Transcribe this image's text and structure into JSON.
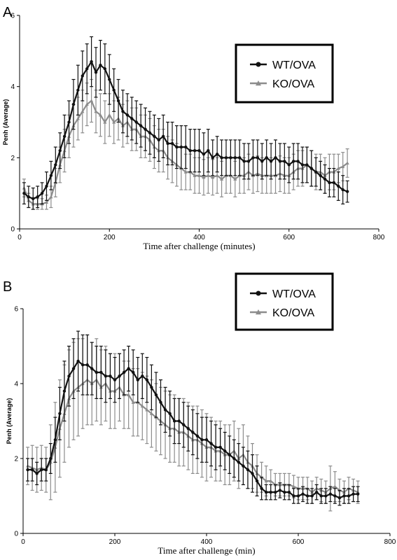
{
  "chart_data": [
    {
      "panel": "A",
      "type": "line",
      "xlabel": "Time after challenge (minutes)",
      "ylabel": "Penh (Average)",
      "xlim": [
        0,
        800
      ],
      "ylim": [
        0,
        6
      ],
      "xticks": [
        0,
        200,
        400,
        600,
        800
      ],
      "yticks": [
        0,
        2,
        4,
        6
      ],
      "legend_position": "top-right",
      "series": [
        {
          "name": "WT/OVA",
          "color": "#111111",
          "marker": "circle",
          "x": [
            10,
            20,
            30,
            40,
            50,
            60,
            70,
            80,
            90,
            100,
            110,
            120,
            130,
            140,
            150,
            160,
            170,
            180,
            190,
            200,
            210,
            220,
            230,
            240,
            250,
            260,
            270,
            280,
            290,
            300,
            310,
            320,
            330,
            340,
            350,
            360,
            370,
            380,
            390,
            400,
            410,
            420,
            430,
            440,
            450,
            460,
            470,
            480,
            490,
            500,
            510,
            520,
            530,
            540,
            550,
            560,
            570,
            580,
            590,
            600,
            610,
            620,
            630,
            640,
            650,
            660,
            670,
            680,
            690,
            700,
            710,
            720,
            730
          ],
          "y": [
            1.0,
            0.9,
            0.85,
            0.9,
            1.0,
            1.2,
            1.5,
            1.8,
            2.2,
            2.6,
            3.0,
            3.5,
            3.9,
            4.3,
            4.5,
            4.7,
            4.4,
            4.6,
            4.5,
            4.2,
            3.9,
            3.6,
            3.3,
            3.2,
            3.1,
            3.0,
            2.9,
            2.8,
            2.7,
            2.6,
            2.5,
            2.6,
            2.4,
            2.4,
            2.3,
            2.3,
            2.3,
            2.2,
            2.2,
            2.2,
            2.1,
            2.2,
            2.0,
            2.1,
            2.0,
            2.0,
            2.0,
            2.0,
            2.0,
            1.9,
            1.9,
            2.0,
            2.0,
            1.9,
            2.0,
            1.9,
            2.0,
            1.9,
            1.9,
            1.8,
            1.9,
            1.9,
            1.8,
            1.8,
            1.7,
            1.6,
            1.5,
            1.4,
            1.3,
            1.3,
            1.2,
            1.1,
            1.05
          ],
          "error": [
            0.3,
            0.3,
            0.3,
            0.3,
            0.3,
            0.4,
            0.4,
            0.5,
            0.5,
            0.6,
            0.6,
            0.7,
            0.7,
            0.7,
            0.7,
            0.7,
            0.7,
            0.7,
            0.7,
            0.7,
            0.6,
            0.6,
            0.6,
            0.6,
            0.6,
            0.6,
            0.6,
            0.6,
            0.6,
            0.6,
            0.6,
            0.6,
            0.6,
            0.6,
            0.6,
            0.6,
            0.6,
            0.6,
            0.6,
            0.6,
            0.6,
            0.6,
            0.5,
            0.5,
            0.5,
            0.5,
            0.5,
            0.5,
            0.5,
            0.5,
            0.5,
            0.5,
            0.5,
            0.5,
            0.5,
            0.5,
            0.5,
            0.5,
            0.5,
            0.5,
            0.5,
            0.5,
            0.5,
            0.5,
            0.5,
            0.4,
            0.4,
            0.4,
            0.4,
            0.4,
            0.4,
            0.4,
            0.3
          ]
        },
        {
          "name": "KO/OVA",
          "color": "#8c8c8c",
          "marker": "triangle",
          "x": [
            10,
            20,
            30,
            40,
            50,
            60,
            70,
            80,
            90,
            100,
            110,
            120,
            130,
            140,
            150,
            160,
            170,
            180,
            190,
            200,
            210,
            220,
            230,
            240,
            250,
            260,
            270,
            280,
            290,
            300,
            310,
            320,
            330,
            340,
            350,
            360,
            370,
            380,
            390,
            400,
            410,
            420,
            430,
            440,
            450,
            460,
            470,
            480,
            490,
            500,
            510,
            520,
            530,
            540,
            550,
            560,
            570,
            580,
            590,
            600,
            610,
            620,
            630,
            640,
            650,
            660,
            670,
            680,
            690,
            700,
            710,
            720,
            730
          ],
          "y": [
            1.15,
            0.8,
            0.7,
            0.7,
            0.7,
            0.75,
            0.9,
            1.3,
            1.8,
            2.2,
            2.6,
            2.9,
            3.1,
            3.3,
            3.5,
            3.6,
            3.3,
            3.2,
            3.0,
            3.2,
            3.0,
            3.1,
            2.9,
            3.0,
            2.8,
            2.8,
            2.6,
            2.6,
            2.5,
            2.3,
            2.2,
            2.2,
            2.0,
            1.9,
            1.8,
            1.7,
            1.6,
            1.6,
            1.5,
            1.5,
            1.45,
            1.5,
            1.45,
            1.5,
            1.4,
            1.5,
            1.5,
            1.4,
            1.5,
            1.5,
            1.6,
            1.5,
            1.55,
            1.5,
            1.5,
            1.5,
            1.5,
            1.55,
            1.5,
            1.5,
            1.6,
            1.7,
            1.7,
            1.8,
            1.7,
            1.6,
            1.6,
            1.5,
            1.6,
            1.6,
            1.7,
            1.75,
            1.85
          ],
          "error": [
            0.25,
            0.2,
            0.15,
            0.15,
            0.15,
            0.2,
            0.3,
            0.4,
            0.5,
            0.6,
            0.6,
            0.6,
            0.6,
            0.6,
            0.6,
            0.6,
            0.6,
            0.6,
            0.6,
            0.6,
            0.6,
            0.6,
            0.6,
            0.6,
            0.6,
            0.6,
            0.6,
            0.6,
            0.6,
            0.6,
            0.6,
            0.6,
            0.6,
            0.6,
            0.6,
            0.6,
            0.5,
            0.5,
            0.5,
            0.5,
            0.5,
            0.5,
            0.5,
            0.5,
            0.5,
            0.5,
            0.5,
            0.5,
            0.5,
            0.5,
            0.5,
            0.5,
            0.5,
            0.5,
            0.5,
            0.5,
            0.5,
            0.5,
            0.5,
            0.5,
            0.5,
            0.5,
            0.5,
            0.5,
            0.5,
            0.5,
            0.5,
            0.5,
            0.5,
            0.5,
            0.4,
            0.4,
            0.4
          ]
        }
      ]
    },
    {
      "panel": "B",
      "type": "line",
      "xlabel": "Time after challenge (min)",
      "ylabel": "Penh (Average)",
      "xlim": [
        0,
        800
      ],
      "ylim": [
        0,
        6
      ],
      "xticks": [
        0,
        200,
        400,
        600,
        800
      ],
      "yticks": [
        0,
        2,
        4,
        6
      ],
      "legend_position": "top-right",
      "series": [
        {
          "name": "WT/OVA",
          "color": "#111111",
          "marker": "circle",
          "x": [
            10,
            20,
            30,
            40,
            50,
            60,
            70,
            80,
            90,
            100,
            110,
            120,
            130,
            140,
            150,
            160,
            170,
            180,
            190,
            200,
            210,
            220,
            230,
            240,
            250,
            260,
            270,
            280,
            290,
            300,
            310,
            320,
            330,
            340,
            350,
            360,
            370,
            380,
            390,
            400,
            410,
            420,
            430,
            440,
            450,
            460,
            470,
            480,
            490,
            500,
            510,
            520,
            530,
            540,
            550,
            560,
            570,
            580,
            590,
            600,
            610,
            620,
            630,
            640,
            650,
            660,
            670,
            680,
            690,
            700,
            710,
            720,
            730
          ],
          "y": [
            1.7,
            1.7,
            1.6,
            1.7,
            1.7,
            2.0,
            2.5,
            3.2,
            3.8,
            4.2,
            4.4,
            4.6,
            4.5,
            4.5,
            4.4,
            4.3,
            4.3,
            4.2,
            4.2,
            4.1,
            4.2,
            4.3,
            4.4,
            4.3,
            4.1,
            4.2,
            4.1,
            3.9,
            3.7,
            3.5,
            3.3,
            3.2,
            3.0,
            3.0,
            2.9,
            2.8,
            2.7,
            2.6,
            2.5,
            2.5,
            2.4,
            2.3,
            2.3,
            2.2,
            2.1,
            2.0,
            1.9,
            1.8,
            1.7,
            1.6,
            1.4,
            1.2,
            1.1,
            1.1,
            1.1,
            1.15,
            1.1,
            1.1,
            1.0,
            1.0,
            1.05,
            1.0,
            1.0,
            1.1,
            1.0,
            1.0,
            1.05,
            1.0,
            0.95,
            1.0,
            1.0,
            1.05,
            1.05
          ],
          "error": [
            0.3,
            0.3,
            0.3,
            0.3,
            0.3,
            0.4,
            0.6,
            0.7,
            0.8,
            0.8,
            0.8,
            0.8,
            0.8,
            0.8,
            0.7,
            0.7,
            0.7,
            0.7,
            0.6,
            0.6,
            0.6,
            0.6,
            0.6,
            0.6,
            0.6,
            0.6,
            0.6,
            0.6,
            0.6,
            0.6,
            0.6,
            0.6,
            0.6,
            0.6,
            0.6,
            0.6,
            0.6,
            0.6,
            0.6,
            0.6,
            0.6,
            0.6,
            0.5,
            0.5,
            0.5,
            0.5,
            0.5,
            0.5,
            0.5,
            0.5,
            0.4,
            0.3,
            0.2,
            0.2,
            0.2,
            0.2,
            0.2,
            0.2,
            0.2,
            0.2,
            0.2,
            0.2,
            0.2,
            0.2,
            0.2,
            0.2,
            0.2,
            0.2,
            0.2,
            0.2,
            0.2,
            0.2,
            0.2
          ]
        },
        {
          "name": "KO/OVA",
          "color": "#8c8c8c",
          "marker": "triangle",
          "x": [
            10,
            20,
            30,
            40,
            50,
            60,
            70,
            80,
            90,
            100,
            110,
            120,
            130,
            140,
            150,
            160,
            170,
            180,
            190,
            200,
            210,
            220,
            230,
            240,
            250,
            260,
            270,
            280,
            290,
            300,
            310,
            320,
            330,
            340,
            350,
            360,
            370,
            380,
            390,
            400,
            410,
            420,
            430,
            440,
            450,
            460,
            470,
            480,
            490,
            500,
            510,
            520,
            530,
            540,
            550,
            560,
            570,
            580,
            590,
            600,
            610,
            620,
            630,
            640,
            650,
            660,
            670,
            680,
            690,
            700,
            710,
            720,
            730
          ],
          "y": [
            1.8,
            1.75,
            1.7,
            1.75,
            1.7,
            1.9,
            2.3,
            2.8,
            3.2,
            3.6,
            3.8,
            3.9,
            4.0,
            4.1,
            4.0,
            4.1,
            3.9,
            4.0,
            3.8,
            3.8,
            3.9,
            3.7,
            3.7,
            3.5,
            3.5,
            3.4,
            3.3,
            3.2,
            3.1,
            3.0,
            2.9,
            2.8,
            2.8,
            2.7,
            2.7,
            2.6,
            2.5,
            2.5,
            2.4,
            2.3,
            2.3,
            2.2,
            2.2,
            2.1,
            2.1,
            2.2,
            2.0,
            2.1,
            1.9,
            1.8,
            1.6,
            1.5,
            1.4,
            1.4,
            1.3,
            1.3,
            1.3,
            1.3,
            1.25,
            1.2,
            1.2,
            1.2,
            1.1,
            1.2,
            1.15,
            1.1,
            1.2,
            1.25,
            1.15,
            1.1,
            1.2,
            1.15,
            1.1
          ],
          "error": [
            0.5,
            0.6,
            0.6,
            0.6,
            0.6,
            1.0,
            1.2,
            1.3,
            1.3,
            1.3,
            1.3,
            1.3,
            1.2,
            1.2,
            1.1,
            1.1,
            1.0,
            1.0,
            1.0,
            1.0,
            0.9,
            0.9,
            0.9,
            0.9,
            0.9,
            0.9,
            0.9,
            0.9,
            0.9,
            0.9,
            0.9,
            0.9,
            0.9,
            0.9,
            0.9,
            0.9,
            0.9,
            0.9,
            0.9,
            0.9,
            0.8,
            0.8,
            0.8,
            0.8,
            0.8,
            0.8,
            0.8,
            0.8,
            0.7,
            0.6,
            0.5,
            0.4,
            0.4,
            0.3,
            0.3,
            0.3,
            0.3,
            0.3,
            0.3,
            0.3,
            0.3,
            0.3,
            0.3,
            0.3,
            0.3,
            0.3,
            0.6,
            0.4,
            0.3,
            0.3,
            0.3,
            0.3,
            0.3
          ]
        }
      ]
    }
  ]
}
